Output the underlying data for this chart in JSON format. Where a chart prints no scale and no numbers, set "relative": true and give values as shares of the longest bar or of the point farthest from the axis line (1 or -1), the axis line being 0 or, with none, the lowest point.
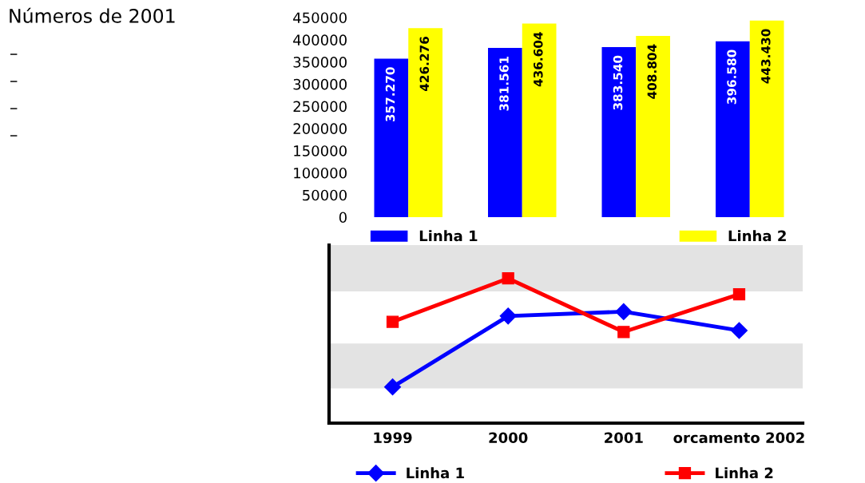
{
  "chart_data": [
    {
      "type": "other",
      "title": "Números de 2001",
      "annotations": [
        "–",
        "–",
        "–",
        "–"
      ]
    },
    {
      "type": "bar",
      "categories": [
        null,
        null,
        null,
        null
      ],
      "series": [
        {
          "name": "Linha 1",
          "color": "#0000ff",
          "values": [
            357270,
            381561,
            383540,
            396580
          ],
          "value_labels": [
            "357.270",
            "381.561",
            "383.540",
            "396.580"
          ]
        },
        {
          "name": "Linha 2",
          "color": "#ffff00",
          "values": [
            426276,
            436604,
            408804,
            443430
          ],
          "value_labels": [
            "426.276",
            "436.604",
            "408.804",
            "443.430"
          ]
        }
      ],
      "ylim": [
        0,
        450000
      ],
      "yticks": [
        0,
        50000,
        100000,
        150000,
        200000,
        250000,
        300000,
        350000,
        400000,
        450000
      ],
      "tick_labels": "y",
      "grid": false,
      "legend": "bottom"
    },
    {
      "type": "line",
      "relative": true,
      "categories": [
        "1999",
        "2000",
        "2001",
        "orcamento 2002"
      ],
      "series": [
        {
          "name": "Linha 1",
          "color": "#0000ff",
          "marker": "diamond",
          "values": [
            0.25,
            0.74,
            0.77,
            0.64
          ]
        },
        {
          "name": "Linha 2",
          "color": "#ff0000",
          "marker": "square",
          "values": [
            0.7,
            1,
            0.63,
            0.89
          ]
        }
      ],
      "bands": [
        {
          "axis": "y",
          "from": 0.24,
          "to": 0.55,
          "color": "#e3e3e3"
        },
        {
          "axis": "y",
          "from": 0.91,
          "to": 1.23,
          "color": "#e3e3e3"
        }
      ],
      "grid": false,
      "legend": "bottom",
      "line_style": "solid"
    }
  ]
}
